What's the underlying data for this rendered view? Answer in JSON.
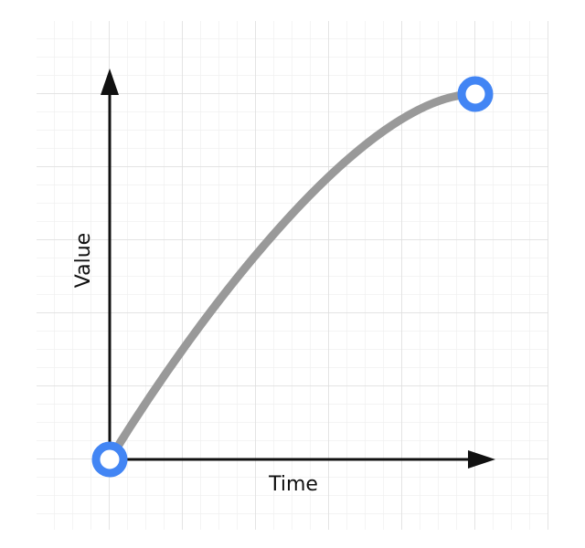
{
  "axes": {
    "y_label": "Value",
    "x_label": "Time"
  }
}
